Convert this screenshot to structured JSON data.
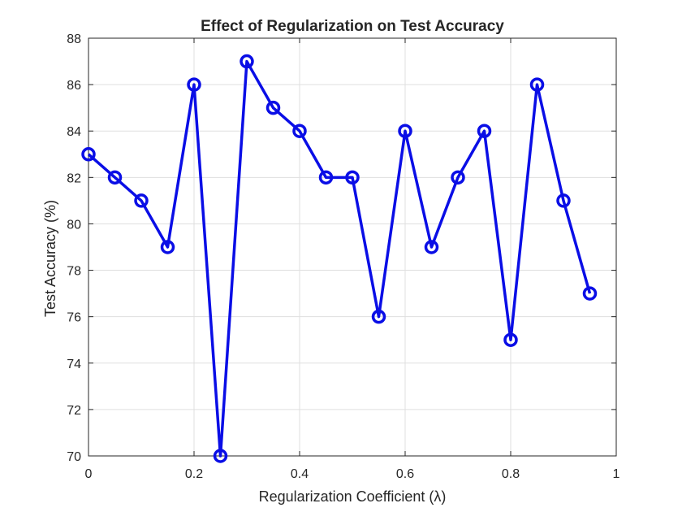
{
  "chart_data": {
    "type": "line",
    "title": "Effect of Regularization on Test Accuracy",
    "xlabel": "Regularization Coefficient (λ)",
    "ylabel": "Test Accuracy (%)",
    "xlim": [
      0,
      1
    ],
    "ylim": [
      70,
      88
    ],
    "xticks": [
      0,
      0.2,
      0.4,
      0.6,
      0.8,
      1
    ],
    "xtick_labels": [
      "0",
      "0.2",
      "0.4",
      "0.6",
      "0.8",
      "1"
    ],
    "yticks": [
      70,
      72,
      74,
      76,
      78,
      80,
      82,
      84,
      86,
      88
    ],
    "ytick_labels": [
      "70",
      "72",
      "74",
      "76",
      "78",
      "80",
      "82",
      "84",
      "86",
      "88"
    ],
    "grid": true,
    "series": [
      {
        "color": "#0a0ee6",
        "marker": "circle",
        "x": [
          0,
          0.05,
          0.1,
          0.15,
          0.2,
          0.25,
          0.3,
          0.35,
          0.4,
          0.45,
          0.5,
          0.55,
          0.6,
          0.65,
          0.7,
          0.75,
          0.8,
          0.85,
          0.9,
          0.95
        ],
        "y": [
          83,
          82,
          81,
          79,
          86,
          70,
          87,
          85,
          84,
          82,
          82,
          76,
          84,
          79,
          82,
          84,
          75,
          86,
          81,
          77
        ]
      }
    ]
  }
}
